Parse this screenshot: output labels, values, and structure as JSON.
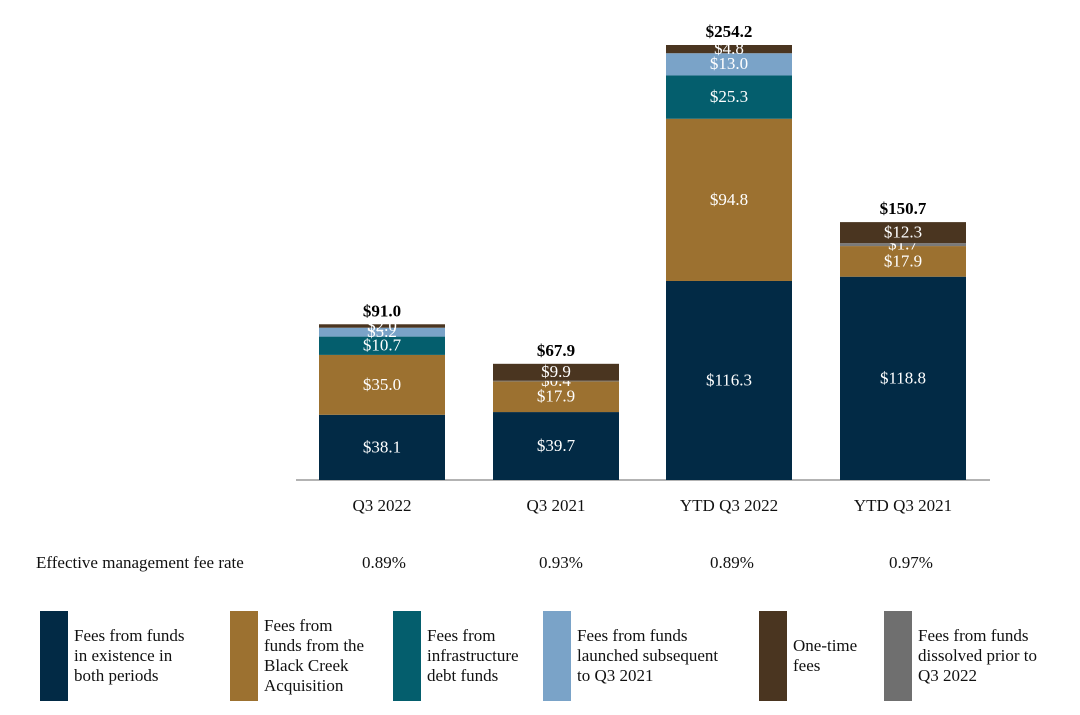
{
  "chart_data": {
    "type": "bar",
    "stacked": true,
    "categories": [
      "Q3 2022",
      "Q3 2021",
      "YTD Q3 2022",
      "YTD Q3 2021"
    ],
    "series": [
      {
        "name": "Fees from funds in existence in both periods",
        "color": "#022a45",
        "values": [
          38.1,
          39.7,
          116.3,
          118.8
        ],
        "labels": [
          "$38.1",
          "$39.7",
          "$116.3",
          "$118.8"
        ]
      },
      {
        "name": "Fees from funds from the Black Creek Acquisition",
        "color": "#9c7130",
        "values": [
          35.0,
          17.9,
          94.8,
          17.9
        ],
        "labels": [
          "$35.0",
          "$17.9",
          "$94.8",
          "$17.9"
        ]
      },
      {
        "name": "Fees from funds dissolved prior to Q3 2022",
        "color": "#7a7a7a",
        "values": [
          0,
          0.4,
          0,
          1.7
        ],
        "labels": [
          "",
          "$0.4",
          "",
          "$1.7"
        ]
      },
      {
        "name": "Fees from infrastructure debt funds",
        "color": "#045e6d",
        "values": [
          10.7,
          0,
          25.3,
          0
        ],
        "labels": [
          "$10.7",
          "",
          "$25.3",
          ""
        ]
      },
      {
        "name": "Fees from funds launched subsequent to Q3 2021",
        "color": "#7aa3c8",
        "values": [
          5.2,
          0,
          13.0,
          0
        ],
        "labels": [
          "$5.2",
          "",
          "$13.0",
          ""
        ]
      },
      {
        "name": "One-time fees",
        "color": "#4a3520",
        "values": [
          2.0,
          9.9,
          4.8,
          12.3
        ],
        "labels": [
          "$2.0",
          "$9.9",
          "$4.8",
          "$12.3"
        ]
      }
    ],
    "totals": [
      "$91.0",
      "$67.9",
      "$254.2",
      "$150.7"
    ],
    "total_values": [
      91.0,
      67.9,
      254.2,
      150.7
    ],
    "ylim": [
      0,
      254.2
    ],
    "xlabel": "",
    "ylabel": "",
    "title": "",
    "grid": false,
    "legend": "bottom"
  },
  "fee_rate": {
    "title": "Effective management fee rate",
    "values": [
      "0.89%",
      "0.93%",
      "0.89%",
      "0.97%"
    ]
  },
  "legend": [
    {
      "lines": [
        "Fees from funds",
        "in existence in",
        "both periods"
      ],
      "color": "#022a45"
    },
    {
      "lines": [
        "Fees from",
        "funds from the",
        "Black Creek",
        "Acquisition"
      ],
      "color": "#9c7130"
    },
    {
      "lines": [
        "Fees from",
        "infrastructure",
        "debt funds"
      ],
      "color": "#045e6d"
    },
    {
      "lines": [
        "Fees from funds",
        "launched subsequent",
        "to Q3 2021"
      ],
      "color": "#7aa3c8"
    },
    {
      "lines": [
        "One-time",
        "fees"
      ],
      "color": "#4a3520"
    },
    {
      "lines": [
        "Fees from funds",
        "dissolved prior to",
        "Q3 2022"
      ],
      "color": "#6f6f6f"
    }
  ]
}
